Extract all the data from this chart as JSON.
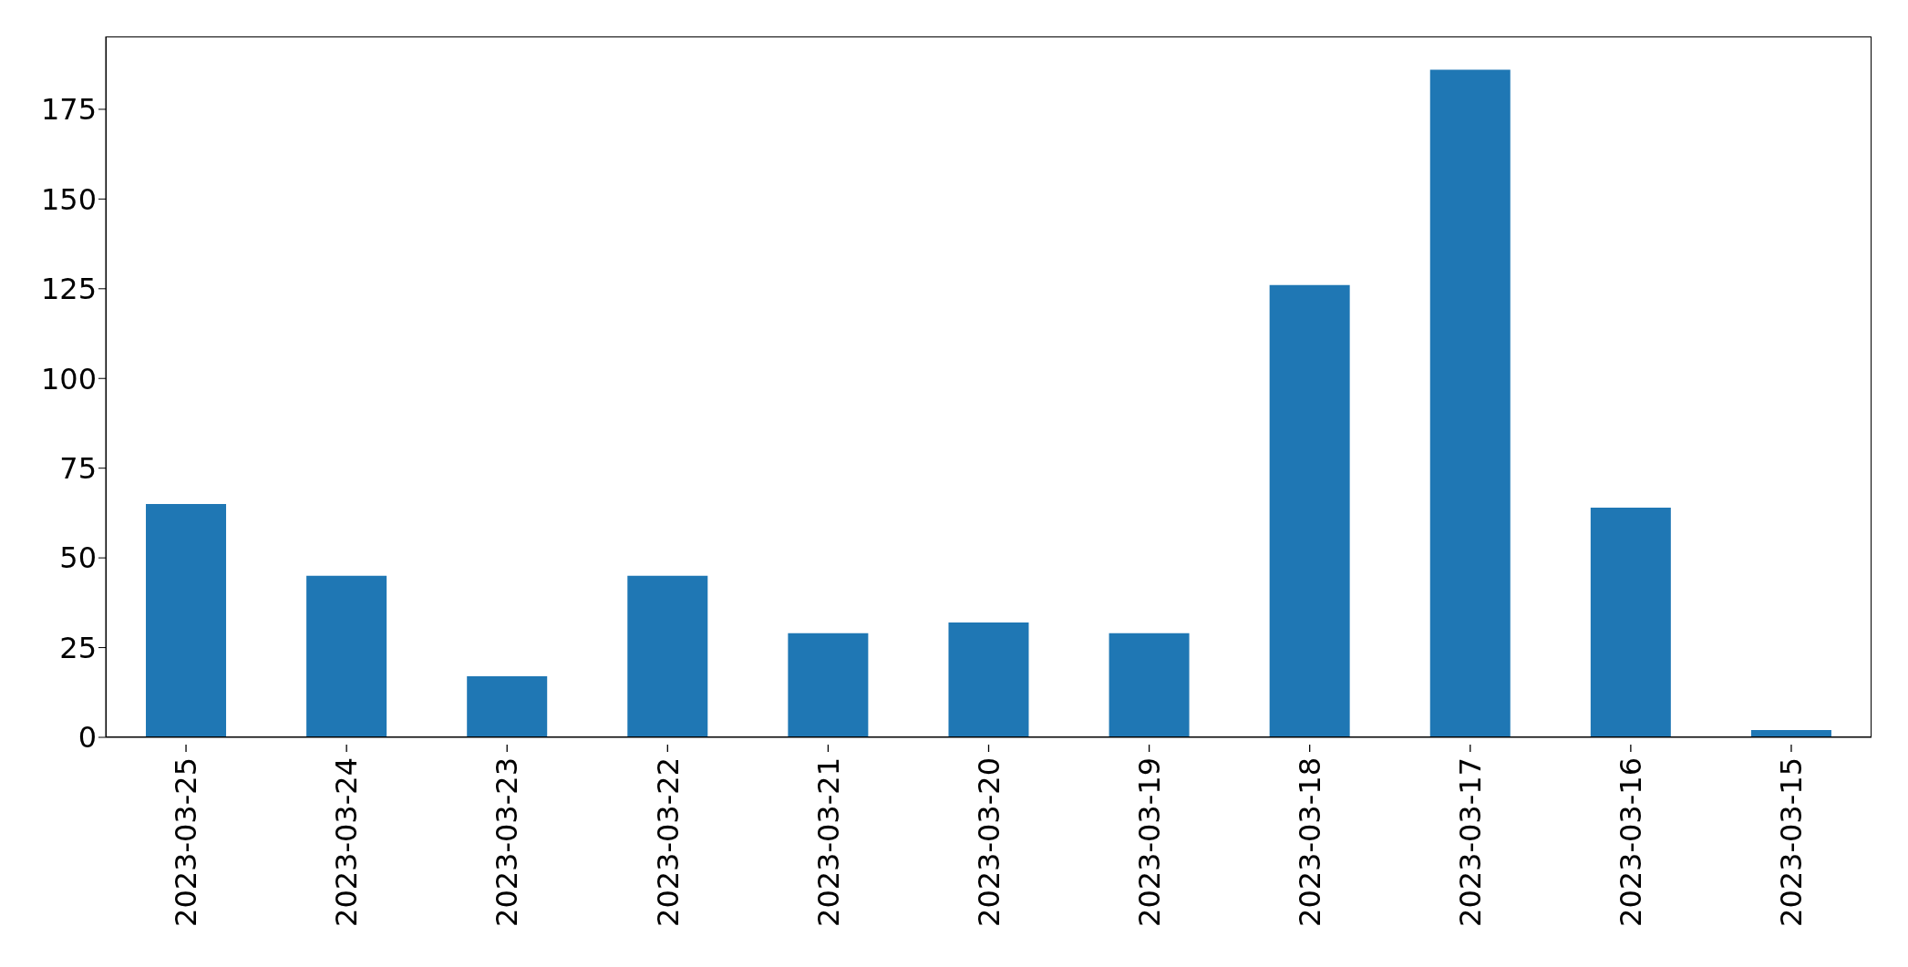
{
  "chart_data": {
    "type": "bar",
    "categories": [
      "2023-03-25",
      "2023-03-24",
      "2023-03-23",
      "2023-03-22",
      "2023-03-21",
      "2023-03-20",
      "2023-03-19",
      "2023-03-18",
      "2023-03-17",
      "2023-03-16",
      "2023-03-15"
    ],
    "values": [
      65,
      45,
      17,
      45,
      29,
      32,
      29,
      126,
      186,
      64,
      2
    ],
    "color": "#1f77b4",
    "ylim": [
      0,
      195.3
    ],
    "yticks": [
      0,
      25,
      50,
      75,
      100,
      125,
      150,
      175
    ],
    "grid": false
  }
}
